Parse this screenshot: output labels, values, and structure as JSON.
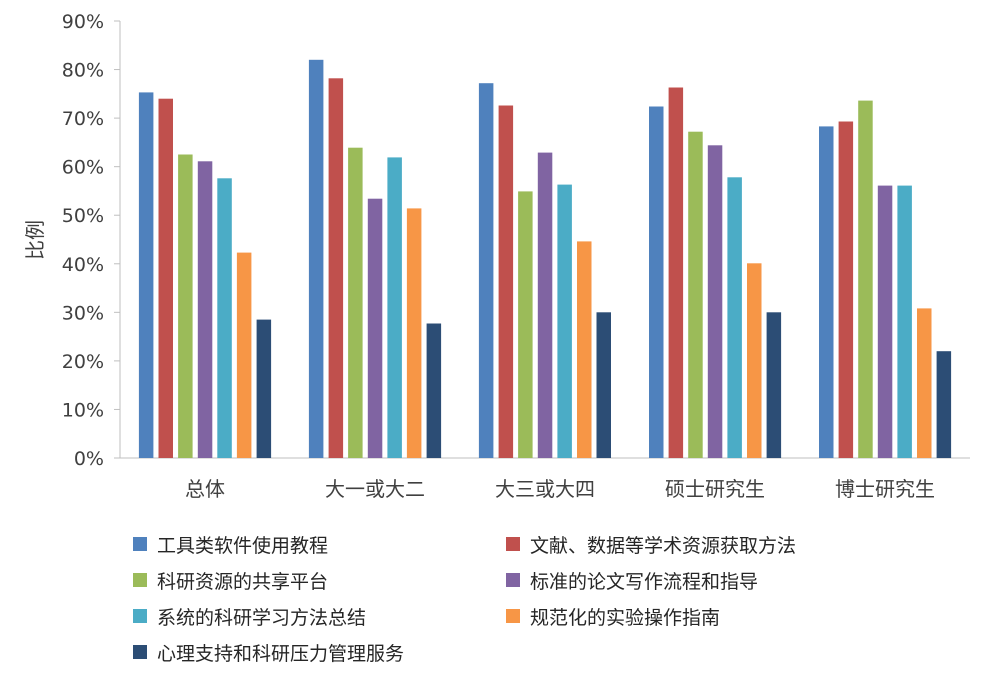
{
  "chart_data": {
    "type": "bar",
    "ylabel": "比例",
    "xlabel": "",
    "ylim": [
      0,
      90
    ],
    "y_ticks": [
      "0%",
      "10%",
      "20%",
      "30%",
      "40%",
      "50%",
      "60%",
      "70%",
      "80%",
      "90%"
    ],
    "grid": false,
    "legend_position": "bottom",
    "categories": [
      "总体",
      "大一或大二",
      "大三或大四",
      "硕士研究生",
      "博士研究生"
    ],
    "series": [
      {
        "name": "工具类软件使用教程",
        "color": "#4F81BD",
        "values": [
          75.3,
          82.0,
          77.2,
          72.4,
          68.3
        ]
      },
      {
        "name": "文献、数据等学术资源获取方法",
        "color": "#C0504D",
        "values": [
          74.0,
          78.2,
          72.6,
          76.3,
          69.3
        ]
      },
      {
        "name": "科研资源的共享平台",
        "color": "#9BBB59",
        "values": [
          62.5,
          63.9,
          54.9,
          67.2,
          73.6
        ]
      },
      {
        "name": "标准的论文写作流程和指导",
        "color": "#8064A2",
        "values": [
          61.1,
          53.4,
          62.9,
          64.4,
          56.1
        ]
      },
      {
        "name": "系统的科研学习方法总结",
        "color": "#4BACC6",
        "values": [
          57.6,
          61.9,
          56.3,
          57.8,
          56.1
        ]
      },
      {
        "name": "规范化的实验操作指南",
        "color": "#F79646",
        "values": [
          42.3,
          51.4,
          44.6,
          40.1,
          30.8
        ]
      },
      {
        "name": "心理支持和科研压力管理服务",
        "color": "#2C4D75",
        "values": [
          28.5,
          27.7,
          30.0,
          30.0,
          22.0
        ]
      }
    ]
  }
}
